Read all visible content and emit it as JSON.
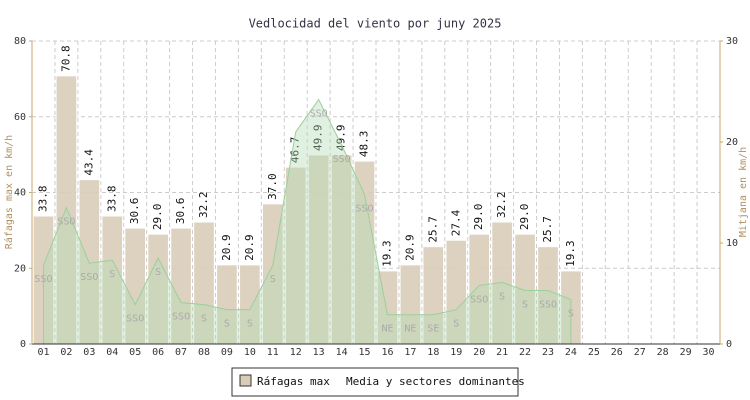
{
  "chart_data": {
    "type": "bar",
    "title": "Vedlocidad del viento por juny 2025",
    "ylabel": "Ráfagas max en km/h",
    "y2label": "Mitjana en km/h",
    "categories": [
      "01",
      "02",
      "03",
      "04",
      "05",
      "06",
      "07",
      "08",
      "09",
      "10",
      "11",
      "12",
      "13",
      "14",
      "15",
      "16",
      "17",
      "18",
      "19",
      "20",
      "21",
      "22",
      "23",
      "24",
      "25",
      "26",
      "27",
      "28",
      "29",
      "30"
    ],
    "series": [
      {
        "name": "Ráfagas max",
        "color": "#d9cdb8",
        "values": [
          33.8,
          70.8,
          43.4,
          33.8,
          30.6,
          29.0,
          30.6,
          32.2,
          20.9,
          20.9,
          37.0,
          46.7,
          49.9,
          49.9,
          48.3,
          19.3,
          20.9,
          25.7,
          27.4,
          29.0,
          32.2,
          29.0,
          25.7,
          19.3,
          null,
          null,
          null,
          null,
          null,
          null
        ],
        "value_labels": [
          "33.8",
          "70.8",
          "43.4",
          "33.8",
          "30.6",
          "29.0",
          "30.6",
          "32.2",
          "20.9",
          "20.9",
          "37.0",
          "46.7",
          "49.9",
          "49.9",
          "48.3",
          "19.3",
          "20.9",
          "25.7",
          "27.4",
          "29.0",
          "32.2",
          "29.0",
          "25.7",
          "19.3",
          null,
          null,
          null,
          null,
          null,
          null
        ]
      },
      {
        "name": "Media y sectores dominantes",
        "color": "#b5dcb5",
        "axis": "y2",
        "type": "area",
        "values": [
          7.8,
          13.5,
          8.0,
          8.3,
          3.9,
          8.5,
          4.1,
          3.9,
          3.4,
          3.4,
          7.8,
          21.0,
          24.2,
          19.7,
          14.8,
          2.9,
          2.9,
          2.9,
          3.4,
          5.8,
          6.1,
          5.3,
          5.3,
          4.4,
          null,
          null,
          null,
          null,
          null,
          null
        ],
        "point_labels": [
          "SSO",
          "SSO",
          "SSO",
          "S",
          "SSO",
          "S",
          "SSO",
          "S",
          "S",
          "S",
          "S",
          null,
          "SSO",
          "SSO",
          "SSO",
          "NE",
          "NE",
          "SE",
          "S",
          "SSO",
          "S",
          "S",
          "SSO",
          "S",
          null,
          null,
          null,
          null,
          null,
          null
        ]
      }
    ],
    "ylim": [
      0,
      80
    ],
    "yticks": [
      0,
      20,
      40,
      60,
      80
    ],
    "y2lim": [
      0,
      30
    ],
    "y2ticks": [
      0,
      10,
      20,
      30
    ],
    "grid": true,
    "legend": "bottom"
  }
}
